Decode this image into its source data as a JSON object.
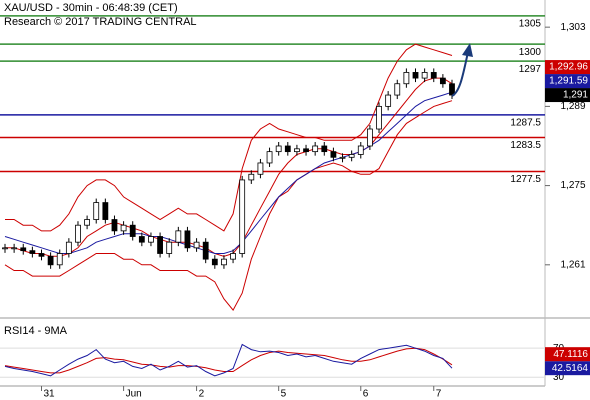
{
  "chart_data": {
    "type": "candlestick",
    "title": "XAU/USD - 30min - 06:48:39 (CET)",
    "subtitle": "Research © 2017 TRADING CENTRAL",
    "categories": [
      null,
      null,
      null,
      null,
      "31",
      null,
      null,
      null,
      null,
      null,
      null,
      null,
      null,
      "Jun",
      null,
      null,
      null,
      null,
      null,
      null,
      null,
      "2",
      null,
      null,
      null,
      null,
      null,
      null,
      null,
      null,
      "5",
      null,
      null,
      null,
      null,
      null,
      null,
      null,
      null,
      "6",
      null,
      null,
      null,
      null,
      null,
      null,
      null,
      "7",
      null,
      null
    ],
    "close": [
      1264,
      1264,
      1263.5,
      1263,
      1262.5,
      1261,
      1263,
      1265,
      1268,
      1269,
      1272,
      1269,
      1267,
      1268,
      1266,
      1265,
      1266,
      1263,
      1265,
      1267,
      1264,
      1265,
      1262,
      1261,
      1262,
      1263,
      1276,
      1277,
      1279,
      1281,
      1282,
      1281,
      1281.5,
      1281,
      1282,
      1281,
      1280,
      1280,
      1280.5,
      1282,
      1285,
      1289,
      1291,
      1293,
      1295,
      1294,
      1295,
      1294,
      1293,
      1291
    ],
    "band_upper": [
      1269,
      1269,
      1268,
      1268,
      1267,
      1267,
      1268,
      1270,
      1273,
      1275,
      1276,
      1276,
      1275,
      1273,
      1272,
      1271,
      1270,
      1269,
      1270,
      1271,
      1270,
      1270,
      1269,
      1268,
      1267,
      1270,
      1278,
      1283,
      1285,
      1286,
      1285,
      1284.5,
      1284,
      1283.5,
      1283.5,
      1283,
      1283,
      1283,
      1283,
      1284,
      1286,
      1290,
      1294,
      1297,
      1299,
      1300,
      1299.5,
      1299,
      1298.5,
      1298
    ],
    "band_lower": [
      1261,
      1260,
      1260,
      1259,
      1259,
      1259,
      1259,
      1260,
      1261,
      1262,
      1263,
      1263,
      1263,
      1262,
      1262,
      1261,
      1261,
      1260,
      1260,
      1260,
      1260,
      1259,
      1259,
      1258,
      1255,
      1253,
      1256,
      1262,
      1266,
      1270,
      1273,
      1274,
      1276,
      1277,
      1278,
      1278.5,
      1279,
      1278.5,
      1277.5,
      1277,
      1277,
      1278,
      1281,
      1284,
      1286,
      1287,
      1288,
      1289,
      1289.5,
      1290
    ],
    "band_color": "#cc0000",
    "ma": [
      1266,
      1265.5,
      1265,
      1264.5,
      1264,
      1263.5,
      1263,
      1263,
      1263.5,
      1264,
      1265,
      1265.5,
      1266,
      1266.5,
      1266.5,
      1266.5,
      1266,
      1266,
      1265.5,
      1265,
      1264.5,
      1264,
      1263.5,
      1263,
      1263,
      1263.5,
      1265,
      1267,
      1269,
      1271,
      1273,
      1274.5,
      1276,
      1277,
      1278,
      1279,
      1279.5,
      1280,
      1280.5,
      1281,
      1282,
      1283,
      1284.5,
      1286,
      1287.5,
      1289,
      1290,
      1290.5,
      1291,
      1291.5
    ],
    "ma_color": "#1a1aa0",
    "ma_fast": [
      1264,
      1264,
      1263.5,
      1263,
      1263,
      1262.5,
      1262.5,
      1263,
      1264,
      1266,
      1267,
      1268,
      1268.5,
      1268,
      1267.5,
      1267,
      1266,
      1265.5,
      1265,
      1265,
      1265,
      1264.5,
      1264,
      1263,
      1262.5,
      1263,
      1265,
      1268,
      1271,
      1274,
      1277,
      1279,
      1280.5,
      1281,
      1281.5,
      1281.5,
      1281,
      1280.5,
      1280.5,
      1281,
      1282,
      1284,
      1286,
      1288,
      1290,
      1292,
      1293.5,
      1294,
      1294,
      1293
    ],
    "ma_fast_color": "#cc0000",
    "ylim": [
      1251.6,
      1307.8
    ],
    "yticks": [
      {
        "value": 1303,
        "label": "1,303"
      },
      {
        "value": 1289,
        "label": "1,289"
      },
      {
        "value": 1275,
        "label": "1,275"
      },
      {
        "value": 1261,
        "label": "1,261"
      }
    ],
    "levels": [
      {
        "value": 1305,
        "color": "#2e8b2e"
      },
      {
        "value": 1300,
        "color": "#2e8b2e"
      },
      {
        "value": 1297,
        "color": "#2e8b2e"
      },
      {
        "value": 1287.5,
        "color": "#1a1aa0"
      },
      {
        "value": 1283.5,
        "color": "#cc0000"
      },
      {
        "value": 1277.5,
        "color": "#cc0000"
      }
    ],
    "price_labels": [
      {
        "value": 1292.96,
        "label": "1,292.96",
        "color": "#cc0000"
      },
      {
        "value": 1291.59,
        "label": "1,291.59",
        "color": "#1a1aa0"
      },
      {
        "value": 1291,
        "label": "1,291",
        "color": "#000000"
      }
    ],
    "rsi": {
      "label": "RSI14 - 9MA",
      "values": [
        45,
        42,
        40,
        38,
        35,
        32,
        40,
        48,
        55,
        60,
        68,
        55,
        50,
        52,
        45,
        42,
        48,
        40,
        45,
        52,
        44,
        46,
        38,
        32,
        36,
        42,
        75,
        68,
        65,
        66,
        64,
        60,
        62,
        58,
        60,
        56,
        52,
        50,
        48,
        56,
        62,
        68,
        70,
        72,
        74,
        70,
        66,
        60,
        56,
        42.5164
      ],
      "signal": [
        46,
        44,
        42,
        40,
        38,
        36,
        36,
        40,
        45,
        50,
        56,
        57,
        55,
        54,
        51,
        48,
        47,
        45,
        44,
        46,
        46,
        45,
        43,
        40,
        38,
        38,
        46,
        54,
        60,
        64,
        66,
        64,
        63,
        62,
        61,
        60,
        57,
        54,
        52,
        52,
        54,
        58,
        62,
        66,
        69,
        70,
        68,
        62,
        55,
        47.1116
      ],
      "color": "#1a1aa0",
      "signal_color": "#cc0000",
      "ylim": [
        18,
        106
      ],
      "yticks": [
        70,
        30
      ]
    }
  }
}
